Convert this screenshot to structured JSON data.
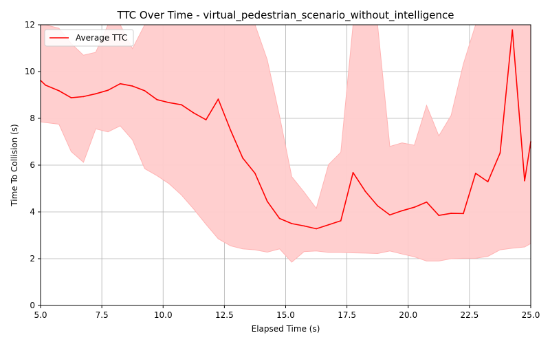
{
  "chart_data": {
    "type": "line",
    "title": "TTC Over Time - virtual_pedestrian_scenario_without_intelligence",
    "xlabel": "Elapsed Time (s)",
    "ylabel": "Time To Collision (s)",
    "xlim": [
      5.0,
      25.0
    ],
    "ylim": [
      0,
      12
    ],
    "xticks": [
      5.0,
      7.5,
      10.0,
      12.5,
      15.0,
      17.5,
      20.0,
      22.5,
      25.0
    ],
    "xtick_labels": [
      "5.0",
      "7.5",
      "10.0",
      "12.5",
      "15.0",
      "17.5",
      "20.0",
      "22.5",
      "25.0"
    ],
    "yticks": [
      0,
      2,
      4,
      6,
      8,
      10,
      12
    ],
    "ytick_labels": [
      "0",
      "2",
      "4",
      "6",
      "8",
      "10",
      "12"
    ],
    "grid": true,
    "legend_position": "top-left",
    "colors": {
      "line": "#ff0000",
      "band": "#ffcccc",
      "grid": "#b0b0b0"
    },
    "series": [
      {
        "name": "Average TTC",
        "x": [
          5.0,
          5.2,
          5.75,
          6.25,
          6.75,
          7.25,
          7.75,
          8.25,
          8.75,
          9.25,
          9.75,
          10.25,
          10.75,
          11.25,
          11.75,
          12.25,
          12.75,
          13.25,
          13.75,
          14.25,
          14.75,
          15.25,
          15.75,
          16.25,
          16.75,
          17.25,
          17.75,
          18.25,
          18.75,
          19.25,
          19.75,
          20.25,
          20.75,
          21.25,
          21.75,
          22.25,
          22.75,
          23.25,
          23.75,
          24.25,
          24.75,
          25.0
        ],
        "y": [
          9.62,
          9.42,
          9.18,
          8.88,
          8.93,
          9.05,
          9.2,
          9.48,
          9.38,
          9.18,
          8.8,
          8.67,
          8.58,
          8.23,
          7.94,
          8.82,
          7.5,
          6.3,
          5.65,
          4.45,
          3.72,
          3.5,
          3.4,
          3.28,
          3.45,
          3.62,
          5.68,
          4.88,
          4.26,
          3.87,
          4.05,
          4.2,
          4.42,
          3.85,
          3.94,
          3.93,
          5.65,
          5.29,
          6.52,
          11.78,
          5.33,
          7.0
        ],
        "lower": [
          7.85,
          7.82,
          7.75,
          6.58,
          6.12,
          7.55,
          7.42,
          7.68,
          7.08,
          5.85,
          5.55,
          5.2,
          4.72,
          4.12,
          3.47,
          2.85,
          2.55,
          2.42,
          2.38,
          2.28,
          2.42,
          1.85,
          2.3,
          2.33,
          2.27,
          2.27,
          2.25,
          2.24,
          2.22,
          2.33,
          2.2,
          2.08,
          1.9,
          1.9,
          2.0,
          2.02,
          2.02,
          2.1,
          2.38,
          2.45,
          2.5,
          2.65
        ],
        "upper": [
          12.0,
          12.0,
          11.85,
          11.2,
          10.7,
          10.82,
          12.0,
          12.0,
          10.98,
          12.0,
          12.0,
          12.0,
          12.0,
          12.0,
          12.0,
          12.0,
          12.0,
          12.0,
          12.0,
          10.5,
          8.1,
          5.5,
          4.85,
          4.15,
          6.02,
          6.55,
          12.0,
          12.0,
          12.0,
          6.8,
          6.95,
          6.85,
          8.55,
          7.25,
          8.12,
          10.32,
          12.0,
          12.0,
          12.0,
          12.0,
          12.0,
          12.0
        ]
      }
    ]
  }
}
